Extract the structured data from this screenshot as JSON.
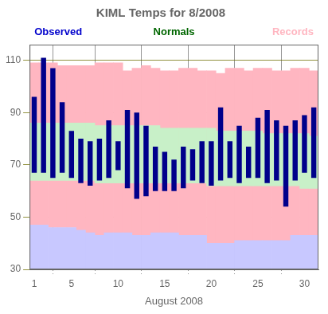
{
  "chart_data": {
    "type": "bar",
    "title": "KIML Temps for 8/2008",
    "xlabel": "August 2008",
    "x": [
      1,
      2,
      3,
      4,
      5,
      6,
      7,
      8,
      9,
      10,
      11,
      12,
      13,
      14,
      15,
      16,
      17,
      18,
      19,
      20,
      21,
      22,
      23,
      24,
      25,
      26,
      27,
      28,
      29,
      30,
      31
    ],
    "xlim": [
      0.5,
      31.5
    ],
    "xticks": [
      1,
      5,
      10,
      15,
      20,
      25,
      30
    ],
    "ylim": [
      30,
      116
    ],
    "yticks": [
      30,
      50,
      70,
      90,
      110
    ],
    "grid": true,
    "series": [
      {
        "color": "#FFB6C1",
        "low": [
          47,
          47,
          46,
          46,
          46,
          45,
          44,
          43,
          44,
          44,
          44,
          43,
          43,
          44,
          44,
          44,
          43,
          43,
          43,
          40,
          40,
          40,
          41,
          41,
          41,
          41,
          41,
          41,
          43,
          43,
          43
        ],
        "high": [
          109,
          109,
          109,
          108,
          108,
          108,
          108,
          109,
          109,
          109,
          106,
          107,
          108,
          107,
          106,
          106,
          107,
          107,
          106,
          106,
          105,
          107,
          107,
          106,
          107,
          107,
          106,
          106,
          107,
          107,
          106
        ]
      },
      {
        "color": "#C8C8FF",
        "values": [
          47,
          47,
          46,
          46,
          46,
          45,
          44,
          43,
          44,
          44,
          44,
          43,
          43,
          44,
          44,
          44,
          43,
          43,
          43,
          40,
          40,
          40,
          41,
          41,
          41,
          41,
          41,
          41,
          43,
          43,
          43
        ]
      },
      {
        "color": "#C8F0C8",
        "low": [
          64,
          64,
          64,
          64,
          64,
          64,
          64,
          63,
          63,
          63,
          63,
          63,
          63,
          63,
          63,
          63,
          63,
          63,
          63,
          62,
          62,
          62,
          62,
          62,
          62,
          62,
          62,
          62,
          62,
          61,
          61
        ],
        "high": [
          86,
          86,
          86,
          86,
          86,
          86,
          86,
          85,
          85,
          85,
          85,
          85,
          85,
          85,
          84,
          84,
          84,
          84,
          84,
          84,
          83,
          83,
          83,
          83,
          83,
          82,
          82,
          82,
          82,
          82,
          81
        ]
      },
      {
        "color": "#00008B",
        "low": [
          67,
          67,
          65,
          67,
          65,
          63,
          62,
          64,
          65,
          68,
          61,
          57,
          58,
          60,
          60,
          60,
          61,
          64,
          63,
          62,
          64,
          65,
          63,
          65,
          65,
          63,
          64,
          54,
          64,
          67,
          65
        ],
        "high": [
          96,
          111,
          107,
          94,
          83,
          80,
          79,
          80,
          87,
          79,
          91,
          90,
          85,
          77,
          75,
          72,
          77,
          76,
          79,
          79,
          92,
          79,
          85,
          77,
          88,
          91,
          87,
          85,
          87,
          89,
          92
        ]
      }
    ],
    "annotations": [
      {
        "text": "Observed",
        "color": "#0000CC"
      },
      {
        "text": "Normals",
        "color": "#006600"
      },
      {
        "text": "Records",
        "color": "#FFB6C1"
      }
    ]
  }
}
